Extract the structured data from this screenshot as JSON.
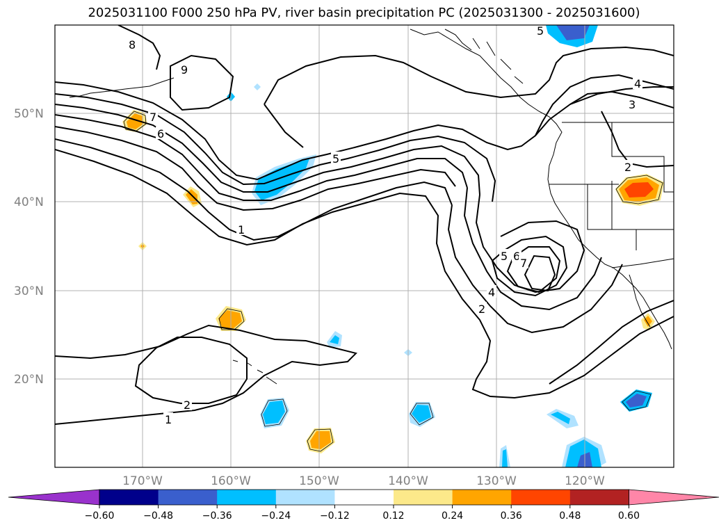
{
  "title": "2025031100 F000 250 hPa PV, river basin precipitation PC (2025031300 - 2025031600)",
  "lat_labels": [
    "50°N",
    "40°N",
    "30°N",
    "20°N"
  ],
  "lon_labels": [
    "170°W",
    "160°W",
    "150°W",
    "140°W",
    "130°W",
    "120°W"
  ],
  "colorbar": {
    "colors": [
      "#9932cc",
      "#00008b",
      "#3a5fcd",
      "#00bfff",
      "#b0e2ff",
      "#ffffff",
      "#fce98a",
      "#ffa500",
      "#ff4500",
      "#b22222",
      "#ff86a8"
    ],
    "ticks": [
      "−0.60",
      "−0.48",
      "−0.36",
      "−0.24",
      "−0.12",
      "0.12",
      "0.24",
      "0.36",
      "0.48",
      "0.60"
    ]
  },
  "contour_labels": [
    "8",
    "9",
    "7",
    "6",
    "5",
    "1",
    "5",
    "6",
    "7",
    "4",
    "2",
    "4",
    "3",
    "2",
    "2",
    "1",
    "5"
  ],
  "colors": {
    "grid": "#b0b0b0",
    "coast": "#000000",
    "contour": "#000000"
  }
}
